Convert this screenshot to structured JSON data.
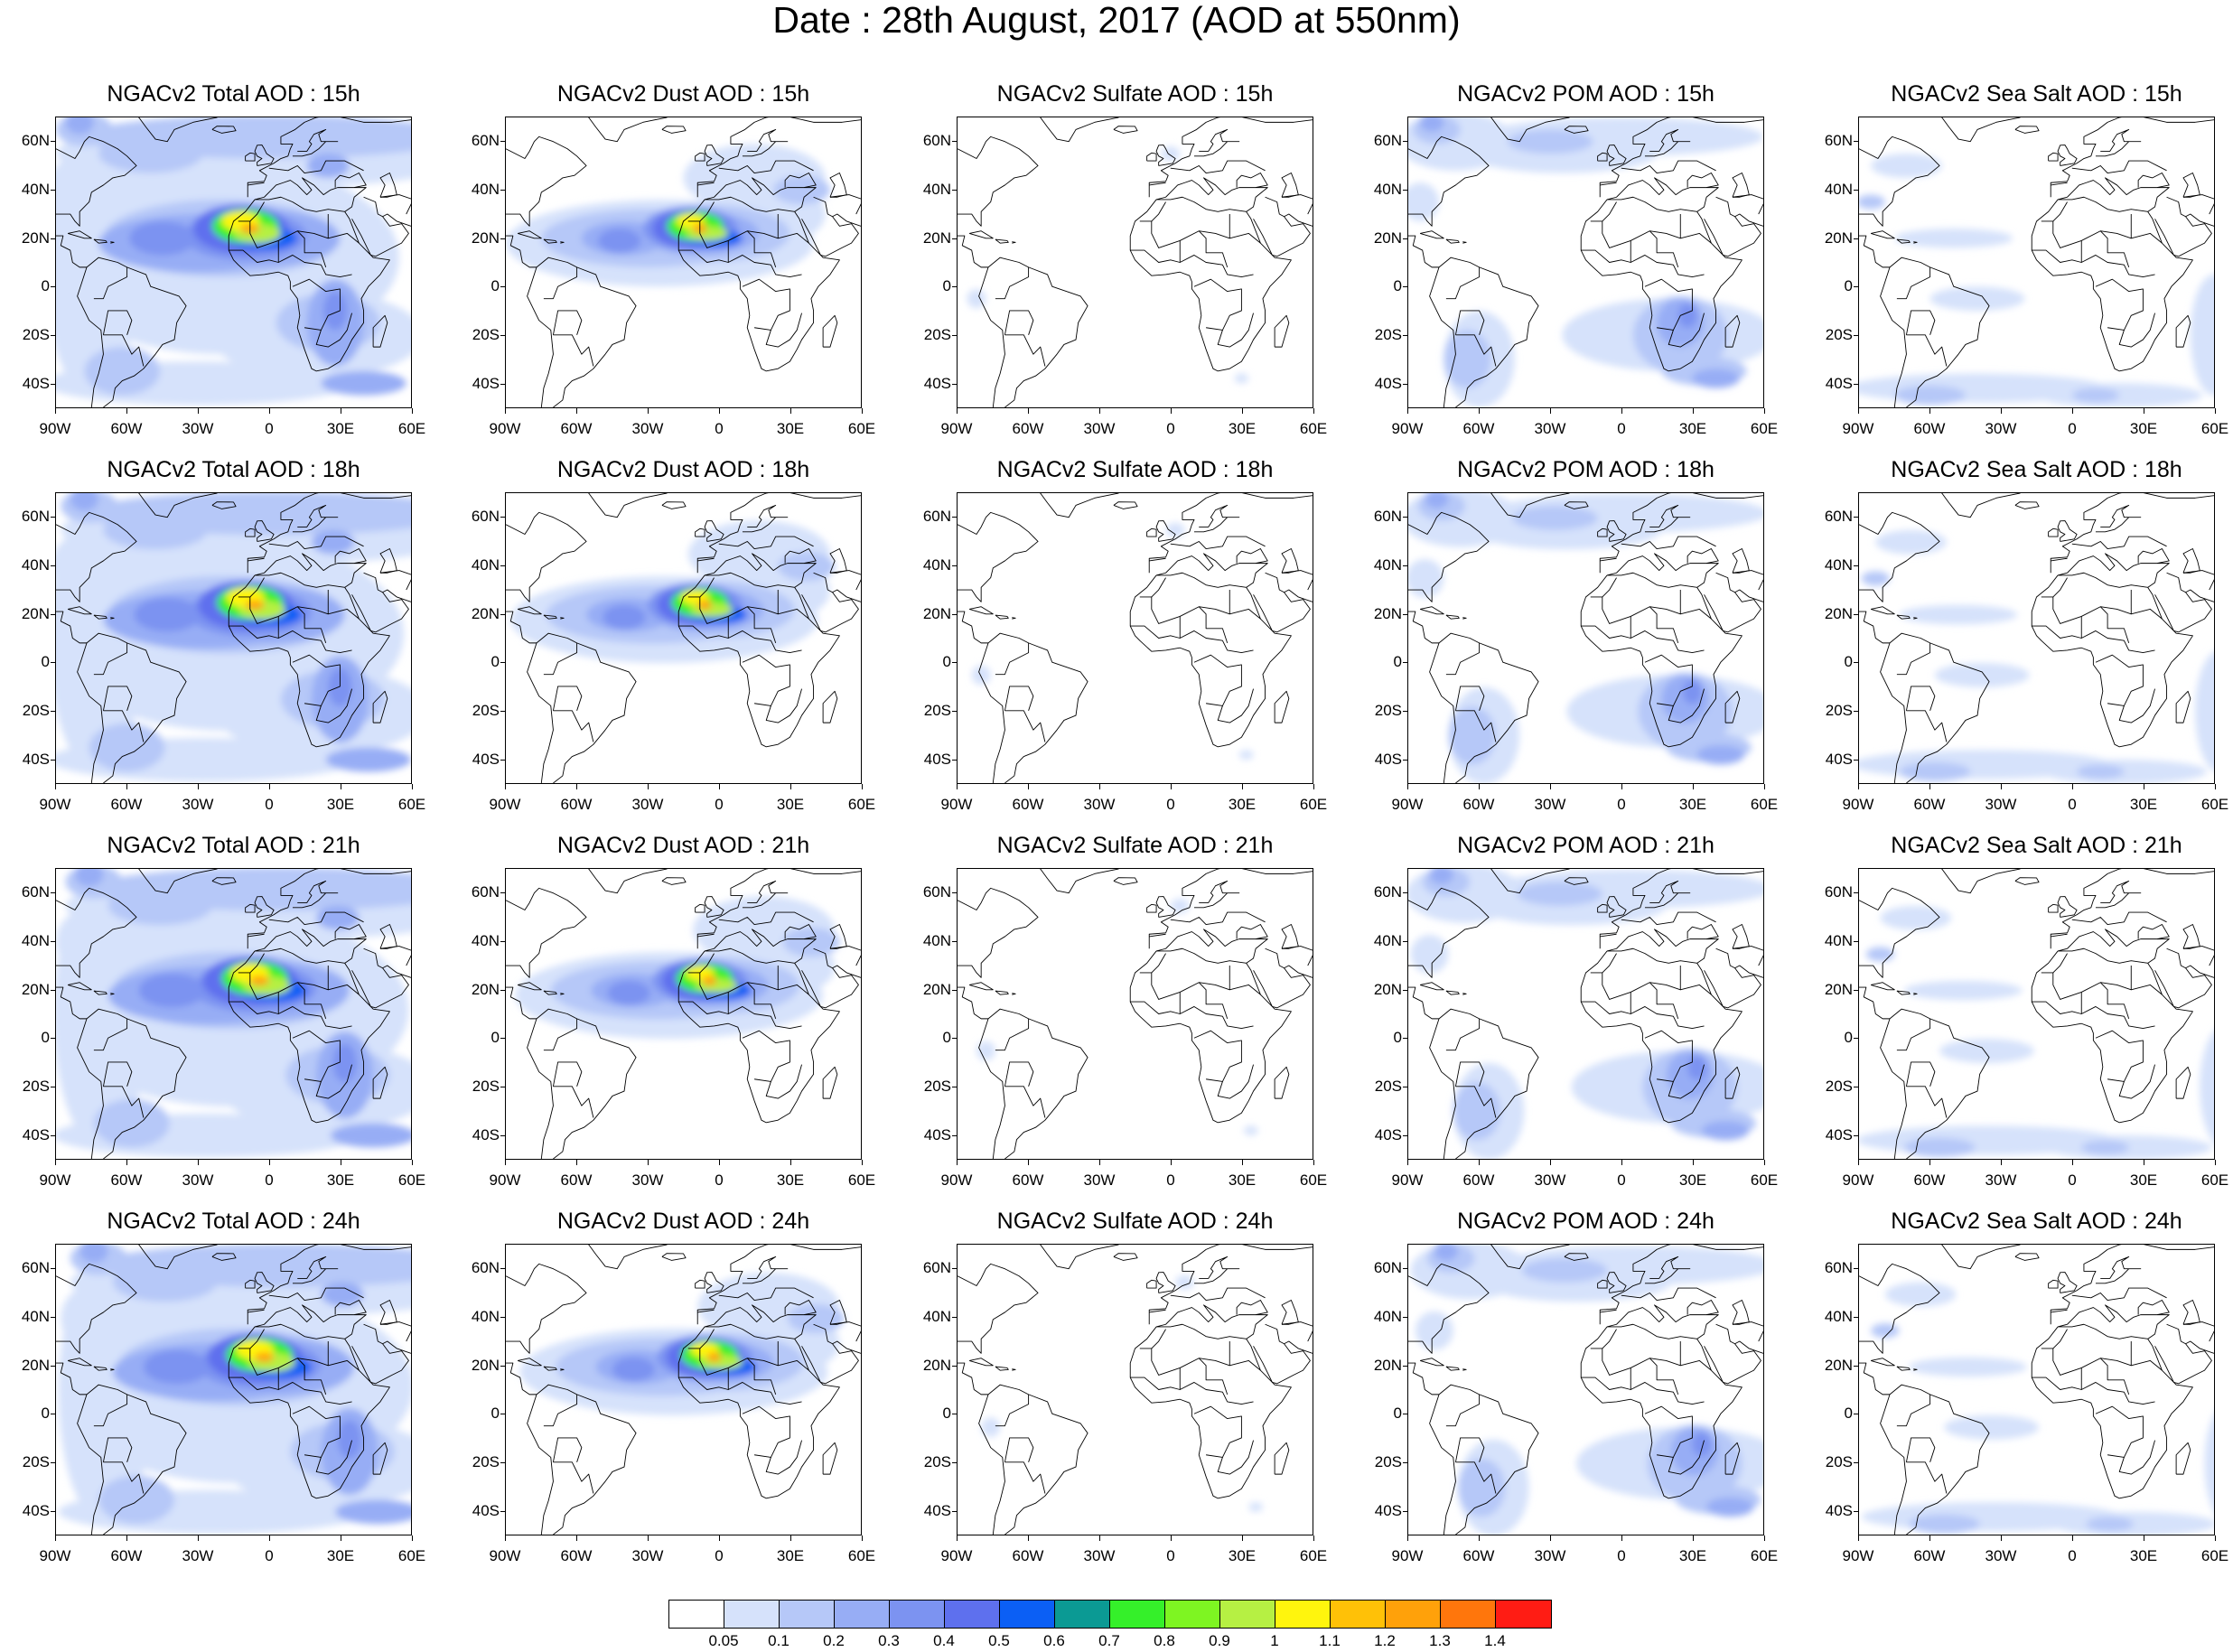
{
  "title": "Date : 28th August, 2017 (AOD at 550nm)",
  "map": {
    "lat_labels": [
      "60N",
      "40N",
      "20N",
      "0",
      "20S",
      "40S"
    ],
    "lat_values": [
      60,
      40,
      20,
      0,
      -20,
      -40
    ],
    "lon_labels": [
      "90W",
      "60W",
      "30W",
      "0",
      "30E",
      "60E"
    ],
    "lon_values": [
      -90,
      -60,
      -30,
      0,
      30,
      60
    ],
    "lat_range": [
      -50,
      70
    ],
    "lon_range": [
      -90,
      60
    ]
  },
  "panels": [
    {
      "title": "NGACv2 Total AOD : 15h",
      "species": "total",
      "hour": 15
    },
    {
      "title": "NGACv2 Dust AOD : 15h",
      "species": "dust",
      "hour": 15
    },
    {
      "title": "NGACv2 Sulfate AOD : 15h",
      "species": "sulfate",
      "hour": 15
    },
    {
      "title": "NGACv2 POM AOD : 15h",
      "species": "pom",
      "hour": 15
    },
    {
      "title": "NGACv2 Sea Salt AOD : 15h",
      "species": "seasalt",
      "hour": 15
    },
    {
      "title": "NGACv2 Total AOD : 18h",
      "species": "total",
      "hour": 18
    },
    {
      "title": "NGACv2 Dust AOD : 18h",
      "species": "dust",
      "hour": 18
    },
    {
      "title": "NGACv2 Sulfate AOD : 18h",
      "species": "sulfate",
      "hour": 18
    },
    {
      "title": "NGACv2 POM AOD : 18h",
      "species": "pom",
      "hour": 18
    },
    {
      "title": "NGACv2 Sea Salt AOD : 18h",
      "species": "seasalt",
      "hour": 18
    },
    {
      "title": "NGACv2 Total AOD : 21h",
      "species": "total",
      "hour": 21
    },
    {
      "title": "NGACv2 Dust AOD : 21h",
      "species": "dust",
      "hour": 21
    },
    {
      "title": "NGACv2 Sulfate AOD : 21h",
      "species": "sulfate",
      "hour": 21
    },
    {
      "title": "NGACv2 POM AOD : 21h",
      "species": "pom",
      "hour": 21
    },
    {
      "title": "NGACv2 Sea Salt AOD : 21h",
      "species": "seasalt",
      "hour": 21
    },
    {
      "title": "NGACv2 Total AOD : 24h",
      "species": "total",
      "hour": 24
    },
    {
      "title": "NGACv2 Dust AOD : 24h",
      "species": "dust",
      "hour": 24
    },
    {
      "title": "NGACv2 Sulfate AOD : 24h",
      "species": "sulfate",
      "hour": 24
    },
    {
      "title": "NGACv2 POM AOD : 24h",
      "species": "pom",
      "hour": 24
    },
    {
      "title": "NGACv2 Sea Salt  AOD : 24h",
      "species": "seasalt",
      "hour": 24
    }
  ],
  "colorbar": {
    "labels": [
      "0.05",
      "0.1",
      "0.2",
      "0.3",
      "0.4",
      "0.5",
      "0.6",
      "0.7",
      "0.8",
      "0.9",
      "1",
      "1.1",
      "1.2",
      "1.3",
      "1.4"
    ],
    "colors": [
      "#ffffff",
      "#d6e2fb",
      "#b6c8f8",
      "#97adf5",
      "#7c93f1",
      "#5e70ee",
      "#0b5ff5",
      "#0b9a94",
      "#35f02a",
      "#7ef522",
      "#b6f043",
      "#fff50d",
      "#ffc107",
      "#ffa10a",
      "#ff760c",
      "#ff1c14"
    ]
  }
}
